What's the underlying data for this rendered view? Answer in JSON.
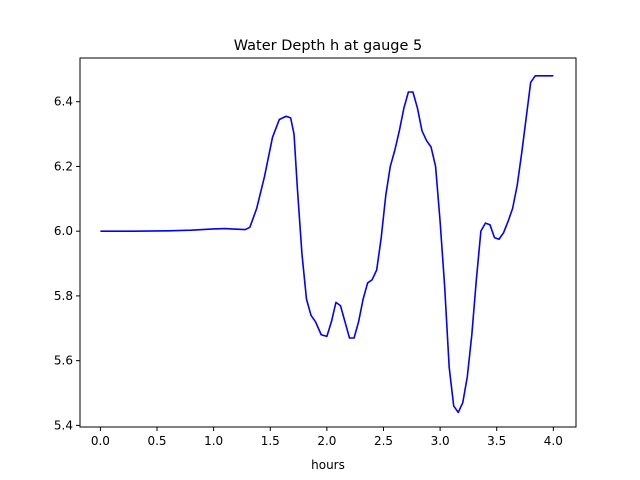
{
  "chart_data": {
    "type": "line",
    "title": "Water Depth h at gauge 5",
    "xlabel": "hours",
    "ylabel": "",
    "xlim": [
      -0.18,
      4.2
    ],
    "ylim": [
      5.395,
      6.535
    ],
    "xticks": [
      0.0,
      0.5,
      1.0,
      1.5,
      2.0,
      2.5,
      3.0,
      3.5,
      4.0
    ],
    "xtick_labels": [
      "0.0",
      "0.5",
      "1.0",
      "1.5",
      "2.0",
      "2.5",
      "3.0",
      "3.5",
      "4.0"
    ],
    "yticks": [
      5.4,
      5.6,
      5.8,
      6.0,
      6.2,
      6.4
    ],
    "ytick_labels": [
      "5.4",
      "5.6",
      "5.8",
      "6.0",
      "6.2",
      "6.4"
    ],
    "grid": false,
    "series": [
      {
        "color": "#0000ff",
        "x": [
          0.0,
          0.3,
          0.6,
          0.8,
          1.0,
          1.1,
          1.2,
          1.28,
          1.32,
          1.38,
          1.45,
          1.52,
          1.58,
          1.64,
          1.68,
          1.71,
          1.74,
          1.78,
          1.82,
          1.86,
          1.9,
          1.95,
          2.0,
          2.04,
          2.08,
          2.12,
          2.16,
          2.2,
          2.24,
          2.28,
          2.32,
          2.36,
          2.4,
          2.44,
          2.48,
          2.52,
          2.56,
          2.6,
          2.64,
          2.68,
          2.72,
          2.76,
          2.8,
          2.84,
          2.88,
          2.92,
          2.96,
          3.0,
          3.04,
          3.08,
          3.12,
          3.16,
          3.2,
          3.24,
          3.28,
          3.32,
          3.36,
          3.4,
          3.44,
          3.48,
          3.52,
          3.56,
          3.6,
          3.64,
          3.68,
          3.72,
          3.76,
          3.8,
          3.84,
          3.88,
          3.92,
          3.96,
          4.0
        ],
        "y": [
          6.0,
          6.0,
          6.001,
          6.003,
          6.007,
          6.008,
          6.006,
          6.005,
          6.012,
          6.07,
          6.17,
          6.29,
          6.345,
          6.355,
          6.35,
          6.3,
          6.13,
          5.93,
          5.79,
          5.74,
          5.72,
          5.68,
          5.675,
          5.72,
          5.78,
          5.77,
          5.72,
          5.67,
          5.67,
          5.72,
          5.79,
          5.84,
          5.85,
          5.88,
          5.98,
          6.11,
          6.2,
          6.25,
          6.31,
          6.38,
          6.43,
          6.43,
          6.38,
          6.31,
          6.28,
          6.26,
          6.2,
          6.03,
          5.83,
          5.58,
          5.46,
          5.44,
          5.47,
          5.55,
          5.68,
          5.85,
          6.0,
          6.025,
          6.02,
          5.98,
          5.975,
          5.995,
          6.03,
          6.07,
          6.14,
          6.24,
          6.35,
          6.46,
          6.48,
          6.48,
          6.48,
          6.48,
          6.48
        ]
      }
    ]
  }
}
